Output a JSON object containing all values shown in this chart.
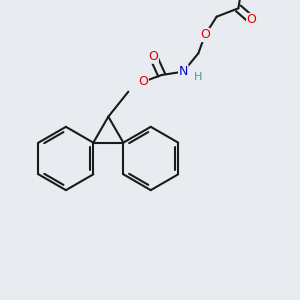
{
  "background_color": "#e8ecf0",
  "bond_color": "#1a1a1a",
  "bond_lw": 1.5,
  "atom_colors": {
    "O": "#e00000",
    "N": "#0000cc",
    "H_on_O": "#5a9090",
    "H_on_N": "#5a9090",
    "C": "#1a1a1a"
  },
  "font_size_atom": 9,
  "font_size_H": 8
}
